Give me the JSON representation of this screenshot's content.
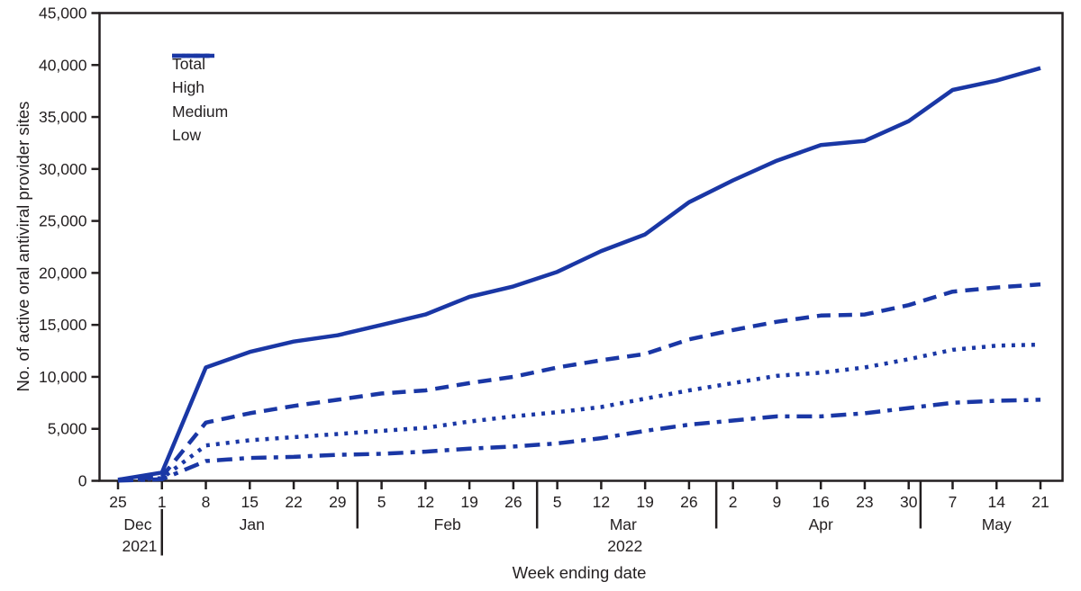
{
  "figure": {
    "background": "#ffffff",
    "accent_color": "#1a37a5",
    "axis_color": "#231f20"
  },
  "chart_data": {
    "type": "line",
    "title": "",
    "xlabel": "Week ending date",
    "ylabel": "No. of active oral antiviral provider sites",
    "ylim": [
      0,
      45000
    ],
    "grid": false,
    "legend_position": "upper-left-inside",
    "y_ticks": [
      0,
      5000,
      10000,
      15000,
      20000,
      25000,
      30000,
      35000,
      40000,
      45000
    ],
    "y_tick_labels": [
      "0",
      "5,000",
      "10,000",
      "15,000",
      "20,000",
      "25,000",
      "30,000",
      "35,000",
      "40,000",
      "45,000"
    ],
    "x_tick_labels": [
      "25",
      "1",
      "8",
      "15",
      "22",
      "29",
      "5",
      "12",
      "19",
      "26",
      "5",
      "12",
      "19",
      "26",
      "2",
      "9",
      "16",
      "23",
      "30",
      "7",
      "14",
      "21"
    ],
    "months": [
      {
        "label": "Dec",
        "year": "2021",
        "center_index": 0.45
      },
      {
        "label": "Jan",
        "year": "",
        "center_index": 3.05
      },
      {
        "label": "Feb",
        "year": "",
        "center_index": 7.5
      },
      {
        "label": "Mar",
        "year": "2022",
        "center_index": 11.5
      },
      {
        "label": "Apr",
        "year": "",
        "center_index": 16.0
      },
      {
        "label": "May",
        "year": "",
        "center_index": 20.0
      }
    ],
    "month_separators": [
      {
        "index": 1.0,
        "extent": "below-tick-labels"
      },
      {
        "index": 5.45,
        "extent": "from-axis"
      },
      {
        "index": 9.54,
        "extent": "from-axis"
      },
      {
        "index": 13.62,
        "extent": "from-axis"
      },
      {
        "index": 18.27,
        "extent": "from-axis"
      }
    ],
    "series": [
      {
        "name": "Total",
        "dash": "solid",
        "values": [
          100,
          800,
          10900,
          12400,
          13400,
          14000,
          15000,
          16000,
          17700,
          18700,
          20100,
          22100,
          23700,
          26800,
          28900,
          30800,
          32300,
          32700,
          34600,
          37600,
          38500,
          39700
        ]
      },
      {
        "name": "High",
        "dash": "dashed",
        "values": [
          100,
          400,
          5600,
          6500,
          7200,
          7800,
          8400,
          8700,
          9400,
          10000,
          10900,
          11600,
          12200,
          13600,
          14500,
          15300,
          15900,
          16000,
          16900,
          18200,
          18600,
          18900
        ]
      },
      {
        "name": "Medium",
        "dash": "dotted",
        "values": [
          50,
          250,
          3400,
          3900,
          4200,
          4500,
          4800,
          5100,
          5700,
          6200,
          6600,
          7100,
          7900,
          8700,
          9400,
          10100,
          10400,
          10900,
          11700,
          12600,
          13000,
          13100
        ]
      },
      {
        "name": "Low",
        "dash": "dash-dot",
        "values": [
          30,
          150,
          1900,
          2200,
          2300,
          2500,
          2600,
          2800,
          3100,
          3300,
          3600,
          4100,
          4800,
          5400,
          5800,
          6200,
          6200,
          6500,
          7000,
          7500,
          7700,
          7800
        ]
      }
    ]
  }
}
